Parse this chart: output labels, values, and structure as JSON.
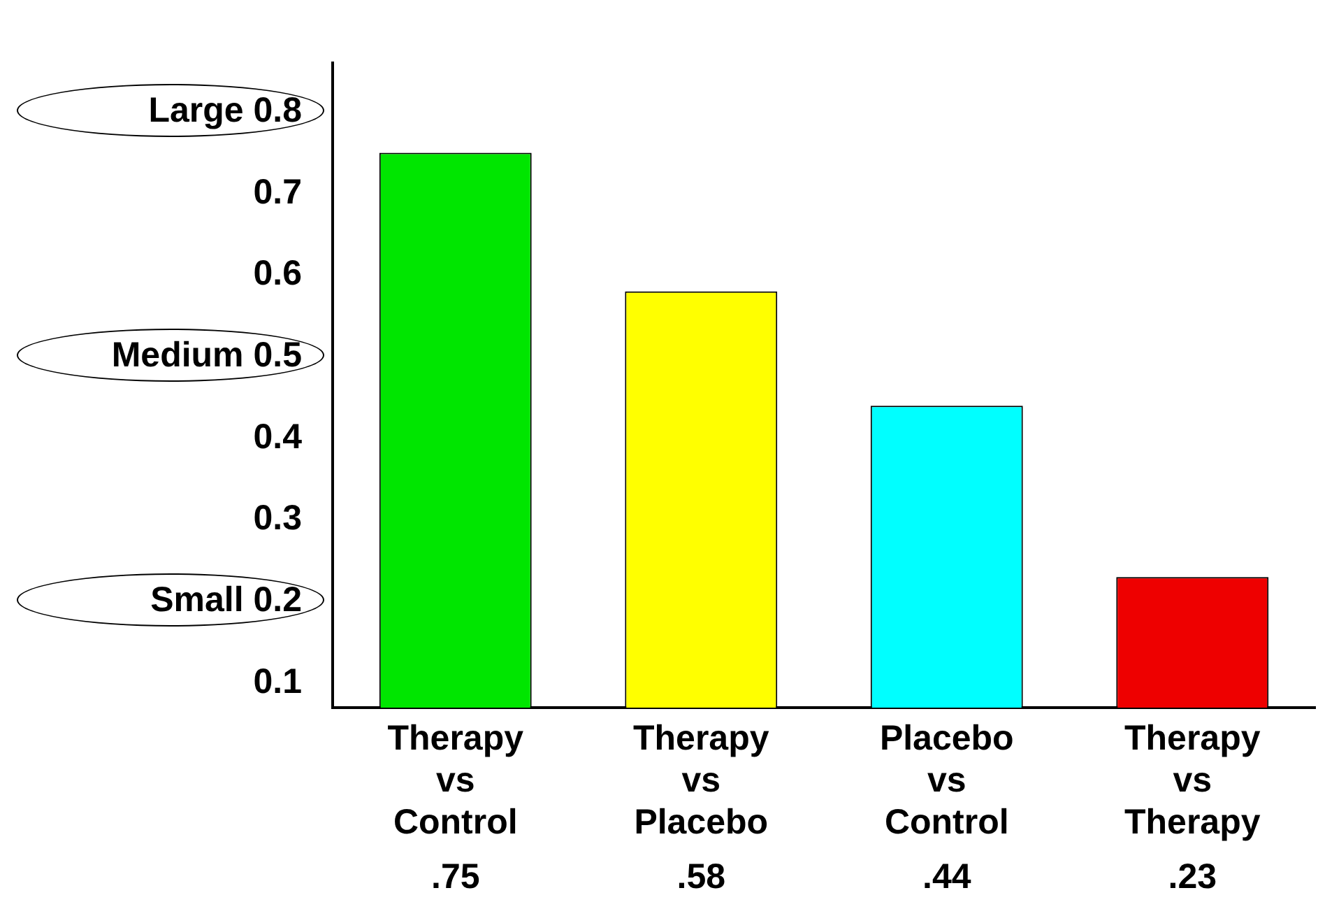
{
  "chart_data": {
    "type": "bar",
    "categories": [
      "Therapy vs Control",
      "Therapy vs Placebo",
      "Placebo vs Control",
      "Therapy vs Therapy"
    ],
    "values": [
      0.75,
      0.58,
      0.44,
      0.23
    ],
    "value_labels": [
      ".75",
      ".58",
      ".44",
      ".23"
    ],
    "colors": [
      "#00e600",
      "#ffff00",
      "#00ffff",
      "#ee0000"
    ],
    "ylim": [
      0.07,
      0.86
    ],
    "yticks": [
      0.1,
      {
        "value": 0.2,
        "label": "Small 0.2"
      },
      0.3,
      0.4,
      {
        "value": 0.5,
        "label": "Medium 0.5"
      },
      0.6,
      0.7,
      {
        "value": 0.8,
        "label": "Large 0.8"
      }
    ],
    "grid": false,
    "legend": false
  }
}
